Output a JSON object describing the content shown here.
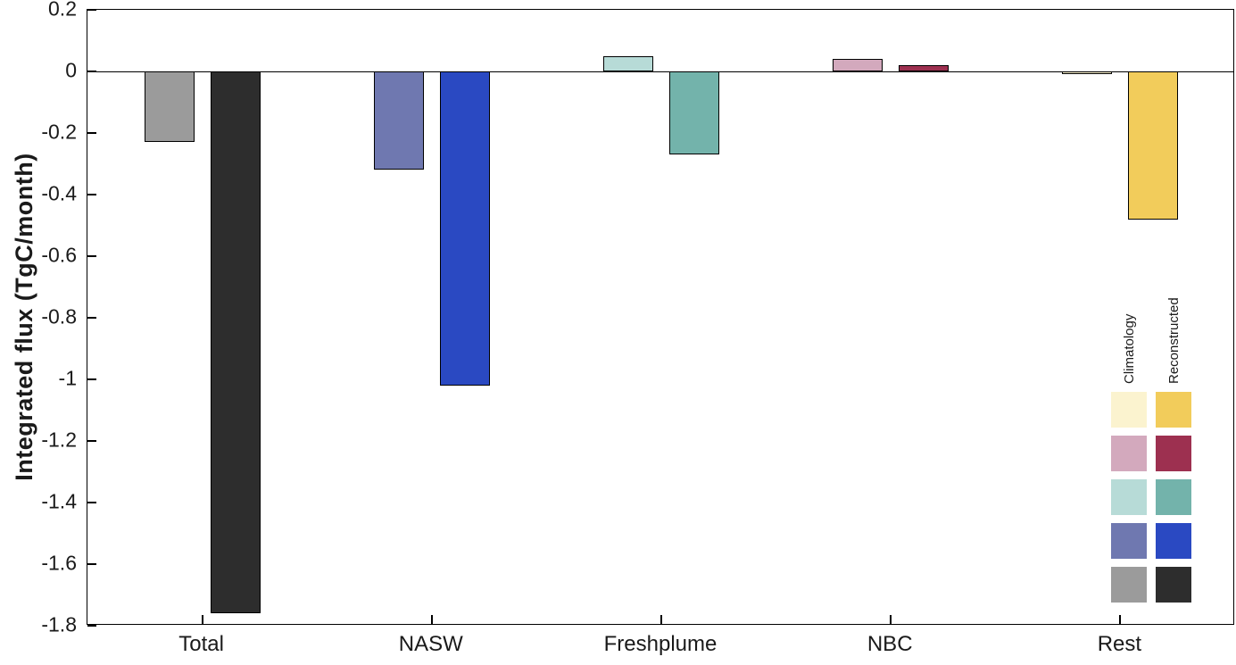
{
  "chart_data": {
    "type": "bar",
    "title": "",
    "xlabel": "",
    "ylabel": "Integrated flux (TgC/month)",
    "categories": [
      "Total",
      "NASW",
      "Freshplume",
      "NBC",
      "Rest"
    ],
    "series": [
      {
        "name": "Climatology",
        "values": [
          -0.23,
          -0.32,
          0.05,
          0.04,
          -0.01
        ],
        "colors": [
          "#9b9b9b",
          "#6f78b0",
          "#b7dbd7",
          "#d3a9bd",
          "#fbf3cf"
        ]
      },
      {
        "name": "Reconstructed",
        "values": [
          -1.76,
          -1.02,
          -0.27,
          0.02,
          -0.48
        ],
        "colors": [
          "#2d2d2d",
          "#2a49c2",
          "#73b3ab",
          "#9d3050",
          "#f2cc5b"
        ]
      }
    ],
    "ylim": [
      -1.8,
      0.2
    ],
    "ytick_labels": [
      "0.2",
      "0",
      "-0.2",
      "-0.4",
      "-0.6",
      "-0.8",
      "-1",
      "-1.2",
      "-1.4",
      "-1.6",
      "-1.8"
    ],
    "grid": false,
    "legend": {
      "labels": [
        "Climatology",
        "Reconstructed"
      ],
      "position": "bottom-right",
      "row_order": [
        "Rest",
        "NBC",
        "Freshplume",
        "NASW",
        "Total"
      ]
    },
    "bar_edge_color": "#000000",
    "axis_color": "#000000",
    "background": "#ffffff"
  }
}
